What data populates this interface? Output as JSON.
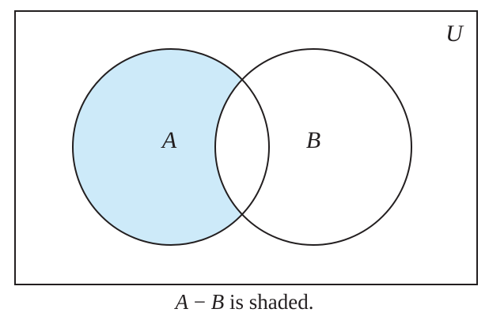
{
  "universe": {
    "label": "U"
  },
  "sets": [
    {
      "id": "A",
      "label": "A"
    },
    {
      "id": "B",
      "label": "B"
    }
  ],
  "shaded_region": "A - B",
  "colors": {
    "shade": "#cdeaf9",
    "stroke": "#231f20",
    "background": "#ffffff"
  },
  "caption": {
    "left_var": "A",
    "operator": "−",
    "right_var": "B",
    "text": "is shaded."
  }
}
